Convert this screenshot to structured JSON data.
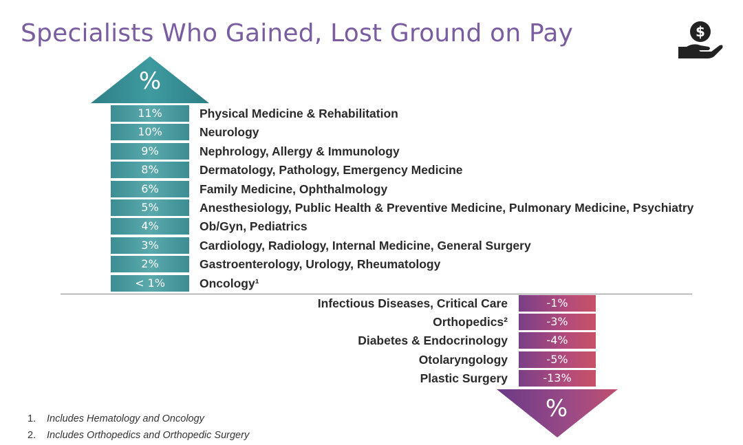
{
  "title": "Specialists Who Gained, Lost Ground on Pay",
  "icons": {
    "money": "money-hand-icon"
  },
  "chart_data": {
    "type": "table",
    "title": "Specialists Who Gained, Lost Ground on Pay",
    "gained": {
      "head_label": "%",
      "rows": [
        {
          "value": "11%",
          "specialties": "Physical Medicine & Rehabilitation"
        },
        {
          "value": "10%",
          "specialties": "Neurology"
        },
        {
          "value": "9%",
          "specialties": "Nephrology, Allergy & Immunology"
        },
        {
          "value": "8%",
          "specialties": "Dermatology, Pathology, Emergency Medicine"
        },
        {
          "value": "6%",
          "specialties": "Family Medicine, Ophthalmology"
        },
        {
          "value": "5%",
          "specialties": "Anesthesiology, Public Health & Preventive Medicine, Pulmonary Medicine, Psychiatry"
        },
        {
          "value": "4%",
          "specialties": "Ob/Gyn, Pediatrics"
        },
        {
          "value": "3%",
          "specialties": "Cardiology, Radiology, Internal Medicine, General Surgery"
        },
        {
          "value": "2%",
          "specialties": "Gastroenterology, Urology, Rheumatology"
        },
        {
          "value": "< 1%",
          "specialties": "Oncology¹"
        }
      ]
    },
    "lost": {
      "head_label": "%",
      "rows": [
        {
          "value": "-1%",
          "specialties": "Infectious Diseases, Critical Care"
        },
        {
          "value": "-3%",
          "specialties": "Orthopedics²"
        },
        {
          "value": "-4%",
          "specialties": "Diabetes & Endocrinology"
        },
        {
          "value": "-5%",
          "specialties": "Otolaryngology"
        },
        {
          "value": "-13%",
          "specialties": "Plastic Surgery"
        }
      ]
    }
  },
  "footnotes": [
    {
      "num": "1.",
      "text": "Includes Hematology and Oncology"
    },
    {
      "num": "2.",
      "text": "Includes Orthopedics and Orthopedic Surgery"
    }
  ],
  "colors": {
    "title": "#7a5ca1",
    "up": "#3b8e93",
    "down": "#b24a7c"
  }
}
